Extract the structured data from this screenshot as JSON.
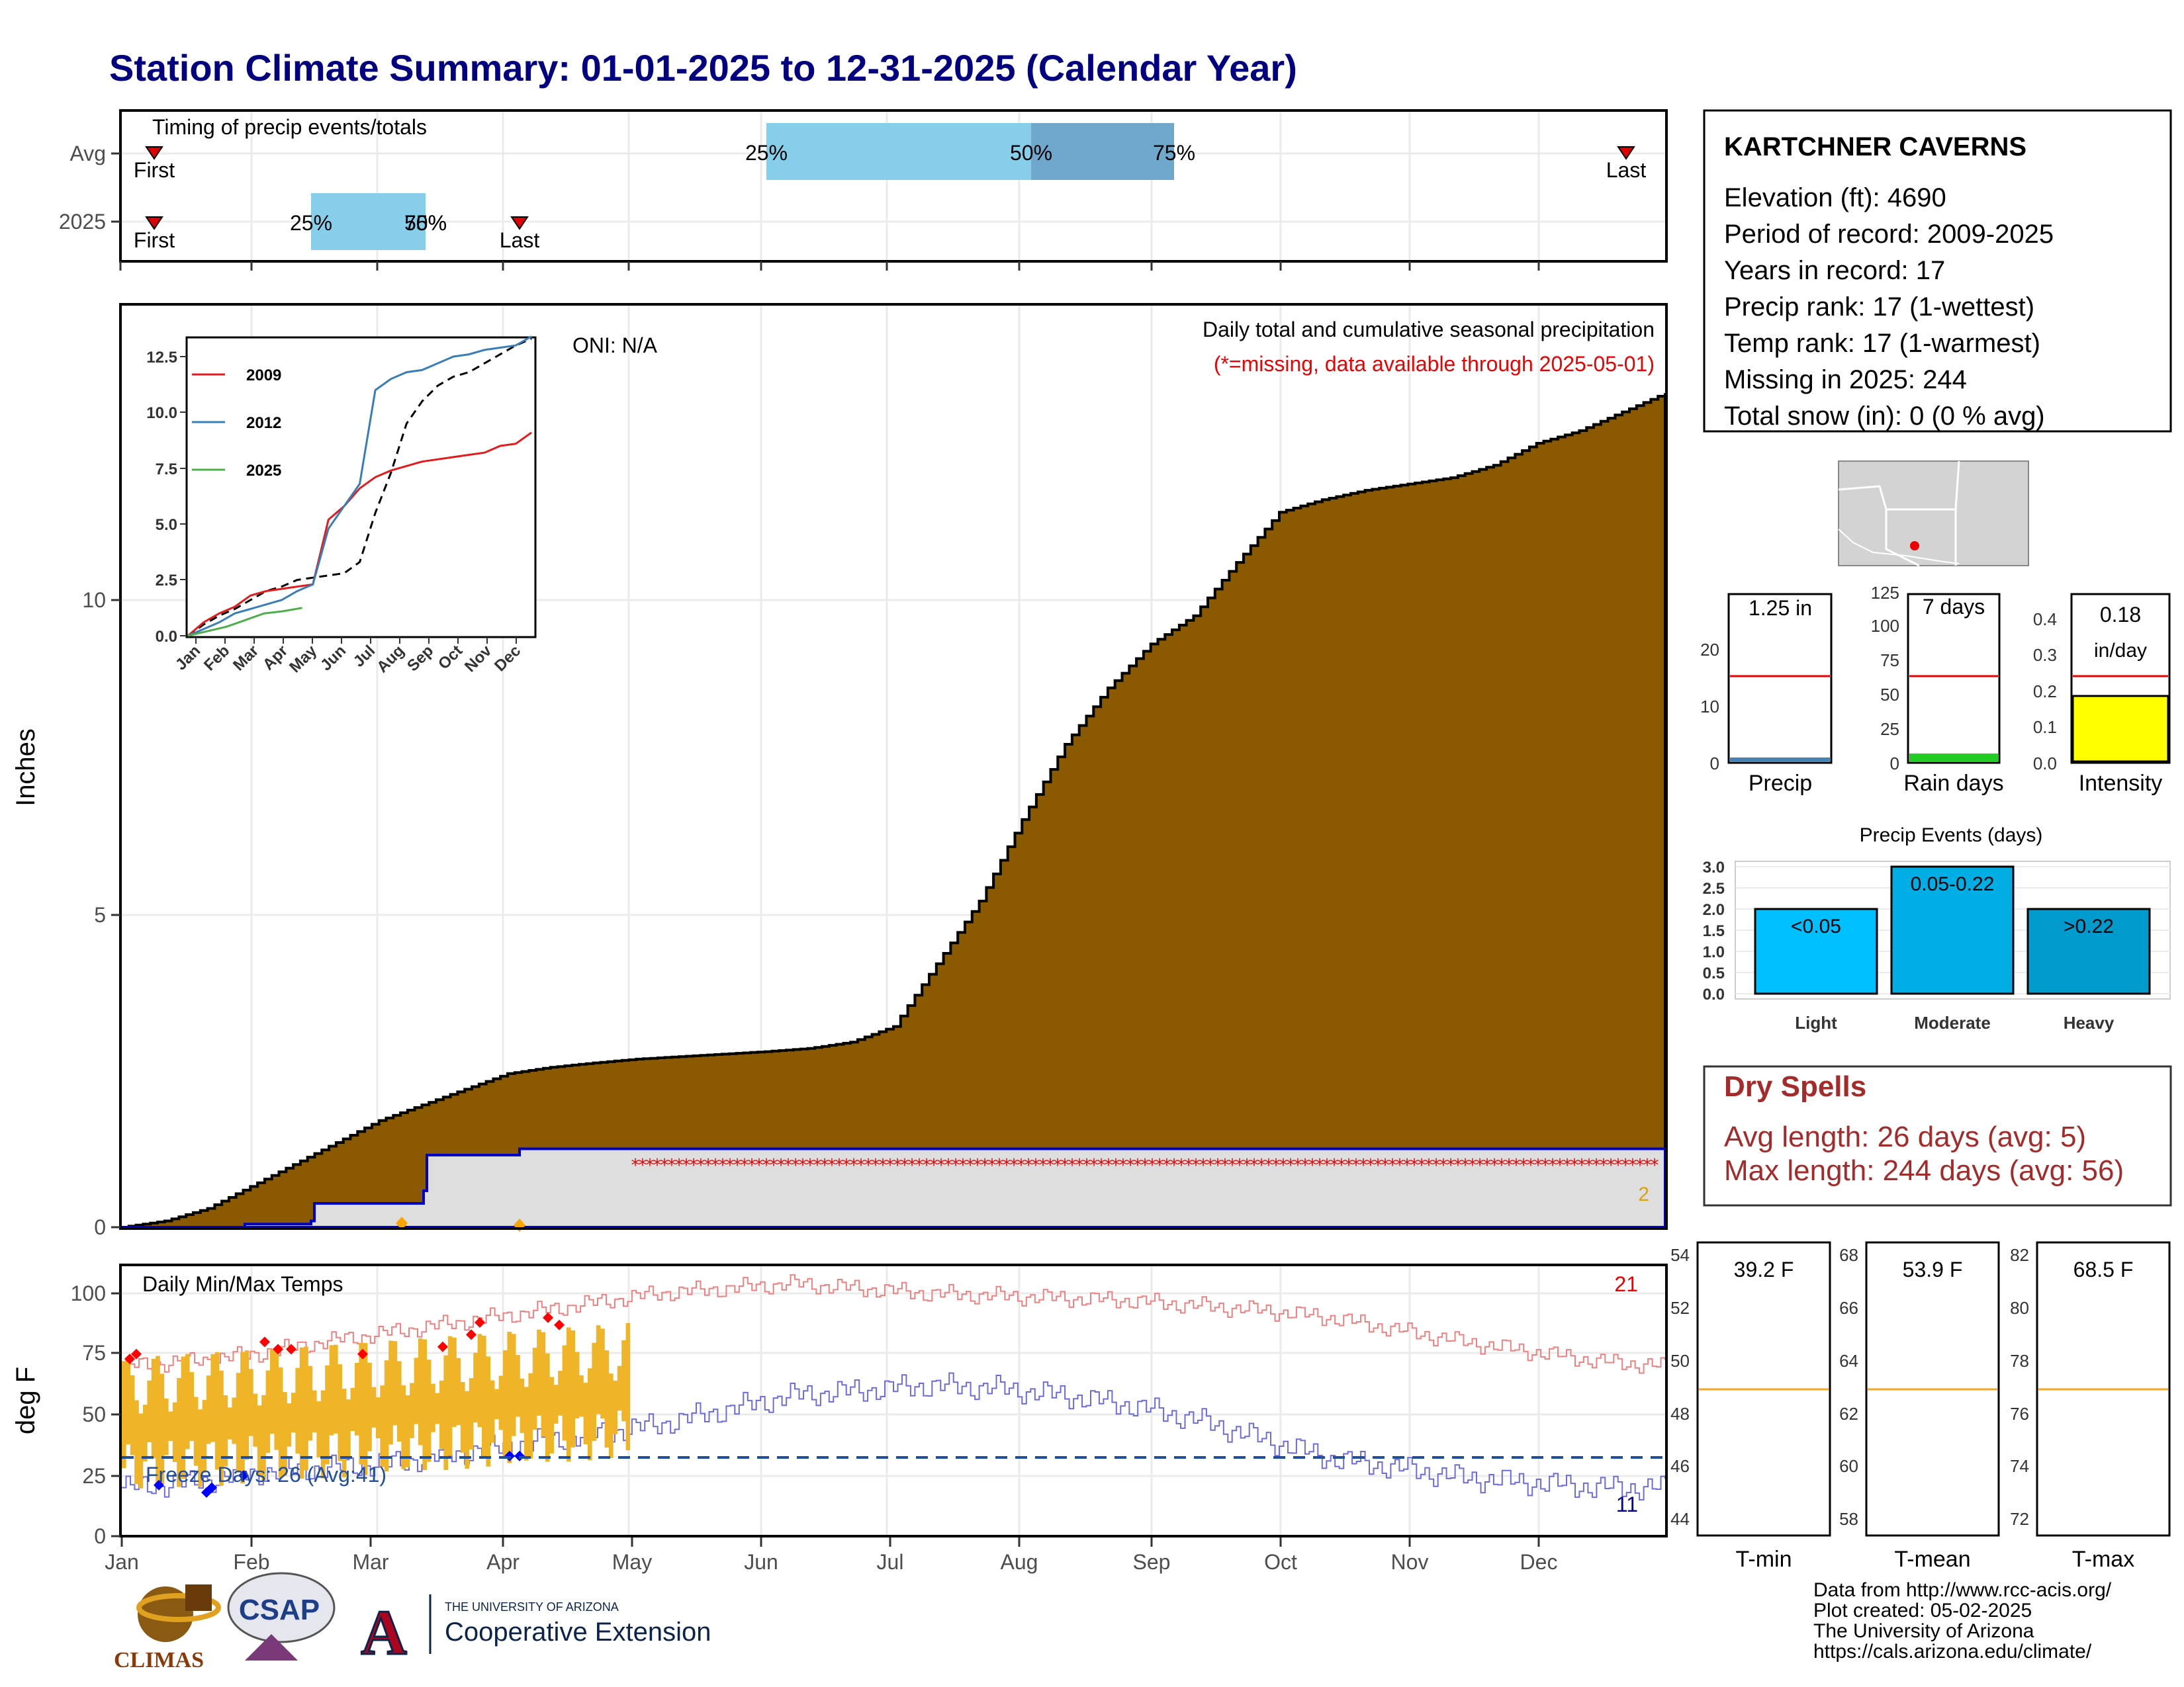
{
  "title": "Station Climate Summary: 01-01-2025 to 12-31-2025 (Calendar Year)",
  "timing": {
    "label": "Timing of precip events/totals",
    "rows": [
      "Avg",
      "2025"
    ],
    "avg": {
      "first": "First",
      "last": "Last",
      "p25": "25%",
      "p50": "50%",
      "p75": "75%"
    },
    "y2025": {
      "first": "First",
      "last": "Last",
      "p25": "25%",
      "p50": "50%",
      "p75": "75%"
    }
  },
  "precip_panel": {
    "ylabel": "Inches",
    "yticks": [
      "0",
      "5",
      "10"
    ],
    "oni": "ONI: N/A",
    "caption": "Daily total and cumulative seasonal precipitation",
    "missing_note": "(*=missing, data available through 2025-05-01)",
    "count_label": "2"
  },
  "inset": {
    "yticks": [
      "0.0",
      "2.5",
      "5.0",
      "7.5",
      "10.0",
      "12.5"
    ],
    "xticks": [
      "Jan",
      "Feb",
      "Mar",
      "Apr",
      "May",
      "Jun",
      "Jul",
      "Aug",
      "Sep",
      "Oct",
      "Nov",
      "Dec"
    ],
    "legend": [
      {
        "name": "2009",
        "color": "#e41a1c"
      },
      {
        "name": "2012",
        "color": "#377eb8"
      },
      {
        "name": "2025",
        "color": "#4daf4a"
      }
    ]
  },
  "temp_panel": {
    "ylabel": "deg F",
    "label": "Daily Min/Max Temps",
    "yticks": [
      "0",
      "25",
      "50",
      "75",
      "100"
    ],
    "freeze": "Freeze Days: 26 (Avg:41)",
    "hot_count": "21",
    "cold_count": "11",
    "months": [
      "Jan",
      "Feb",
      "Mar",
      "Apr",
      "May",
      "Jun",
      "Jul",
      "Aug",
      "Sep",
      "Oct",
      "Nov",
      "Dec"
    ]
  },
  "station": {
    "name": "KARTCHNER CAVERNS",
    "lines": [
      "Elevation (ft): 4690",
      "Period of record: 2009-2025",
      "Years in record: 17",
      "Precip rank: 17 (1-wettest)",
      "Temp rank: 17 (1-warmest)",
      "Missing in 2025: 244",
      "Total snow (in): 0 (0 % avg)"
    ]
  },
  "mini_bars": {
    "precip": {
      "label": "Precip",
      "value_text": "1.25 in",
      "yticks": [
        "0",
        "10",
        "20"
      ]
    },
    "rain_days": {
      "label": "Rain days",
      "value_text": "7 days",
      "yticks": [
        "0",
        "25",
        "50",
        "75",
        "100",
        "125"
      ]
    },
    "intensity": {
      "label": "Intensity",
      "value_text": "0.18",
      "unit": "in/day",
      "yticks": [
        "0.0",
        "0.1",
        "0.2",
        "0.3",
        "0.4"
      ]
    }
  },
  "events": {
    "title": "Precip Events (days)",
    "yticks": [
      "0.0",
      "0.5",
      "1.0",
      "1.5",
      "2.0",
      "2.5",
      "3.0"
    ],
    "categories": [
      "Light",
      "Moderate",
      "Heavy"
    ],
    "bar_labels": [
      "<0.05",
      "0.05-0.22",
      ">0.22"
    ]
  },
  "dry": {
    "title": "Dry Spells",
    "avg": "Avg length: 26 days (avg: 5)",
    "max": "Max length: 244 days (avg: 56)"
  },
  "temp_bars": {
    "tmin": {
      "label": "T-min",
      "value_text": "39.2 F",
      "yticks": [
        "44",
        "46",
        "48",
        "50",
        "52",
        "54"
      ]
    },
    "tmean": {
      "label": "T-mean",
      "value_text": "53.9 F",
      "yticks": [
        "58",
        "60",
        "62",
        "64",
        "66",
        "68"
      ]
    },
    "tmax": {
      "label": "T-max",
      "value_text": "68.5 F",
      "yticks": [
        "72",
        "74",
        "76",
        "78",
        "80",
        "82"
      ]
    }
  },
  "credits": [
    "Data from http://www.rcc-acis.org/",
    "Plot created: 05-02-2025",
    "The University of Arizona",
    "https://cals.arizona.edu/climate/"
  ],
  "logos": {
    "climas": "CLIMAS",
    "csap": "CSAP",
    "ua_small": "THE UNIVERSITY OF ARIZONA",
    "ua_big": "Cooperative Extension",
    "ua_letter": "A"
  },
  "colors": {
    "title": "#000080",
    "cum_fill": "#8B5A00",
    "box_fill": "#dedede",
    "light_blue": "#87CEEB",
    "mid_blue": "#6fa8cc",
    "tmax_line": "#f08080",
    "tmin_line": "#6b6bdf",
    "temp_bar": "#F0B428",
    "dry": "#a52a2a"
  },
  "chart_data": [
    {
      "type": "area",
      "title": "Daily total and cumulative seasonal precipitation",
      "ylabel": "Inches",
      "ylim": [
        0,
        14.0
      ],
      "series": [
        {
          "values": [
            0,
            0.1,
            0.3,
            0.65,
            1.0,
            1.35,
            1.7,
            1.95,
            2.2,
            2.45,
            2.55,
            2.62,
            2.68,
            2.72,
            2.76,
            2.8,
            2.85,
            2.95,
            3.2,
            4.2,
            5.2,
            6.5,
            7.7,
            8.6,
            9.3,
            9.75,
            10.6,
            11.4,
            11.6,
            11.75,
            11.85,
            11.95,
            12.15,
            12.5,
            12.7,
            13.0,
            13.3
          ]
        },
        {
          "values": [
            0,
            0,
            0,
            0.05,
            0.1,
            0.38,
            0.38,
            0.58,
            1.15,
            1.25,
            1.25
          ]
        }
      ]
    },
    {
      "type": "line",
      "ylim": [
        0,
        13.5
      ],
      "series": [
        {
          "name": "2009",
          "values": [
            0,
            0.6,
            1.0,
            1.3,
            1.8,
            2.0,
            2.1,
            2.2,
            2.3,
            5.2,
            5.8,
            6.6,
            7.1,
            7.4,
            7.6,
            7.8,
            7.9,
            8.0,
            8.1,
            8.2,
            8.5,
            8.6,
            9.1
          ]
        },
        {
          "name": "2012",
          "values": [
            0,
            0.3,
            0.6,
            1.0,
            1.2,
            1.4,
            1.6,
            2.0,
            2.3,
            4.8,
            5.8,
            6.8,
            11.0,
            11.5,
            11.8,
            11.9,
            12.2,
            12.5,
            12.6,
            12.8,
            12.9,
            13.0,
            13.4
          ]
        },
        {
          "name": "2025",
          "values": [
            0,
            0.2,
            0.4,
            0.7,
            1.0,
            1.1,
            1.25
          ]
        }
      ]
    },
    {
      "type": "line",
      "title": "Daily Min/Max Temps",
      "ylabel": "deg F",
      "ylim": [
        0,
        110
      ],
      "series": [
        {
          "values": [
            70,
            72,
            75,
            80,
            84,
            88,
            92,
            96,
            100,
            102,
            104,
            102,
            100,
            99,
            98,
            97,
            95,
            93,
            90,
            85,
            80,
            76,
            72,
            70
          ]
        },
        {
          "values": [
            20,
            22,
            26,
            28,
            30,
            34,
            38,
            42,
            46,
            52,
            58,
            60,
            62,
            61,
            58,
            54,
            48,
            40,
            32,
            28,
            24,
            22,
            20,
            20
          ]
        }
      ]
    },
    {
      "type": "bar",
      "title": "Precip Events (days)",
      "categories": [
        "Light",
        "Moderate",
        "Heavy"
      ],
      "values": [
        2,
        3,
        2
      ],
      "ylim": [
        0,
        3
      ]
    }
  ]
}
